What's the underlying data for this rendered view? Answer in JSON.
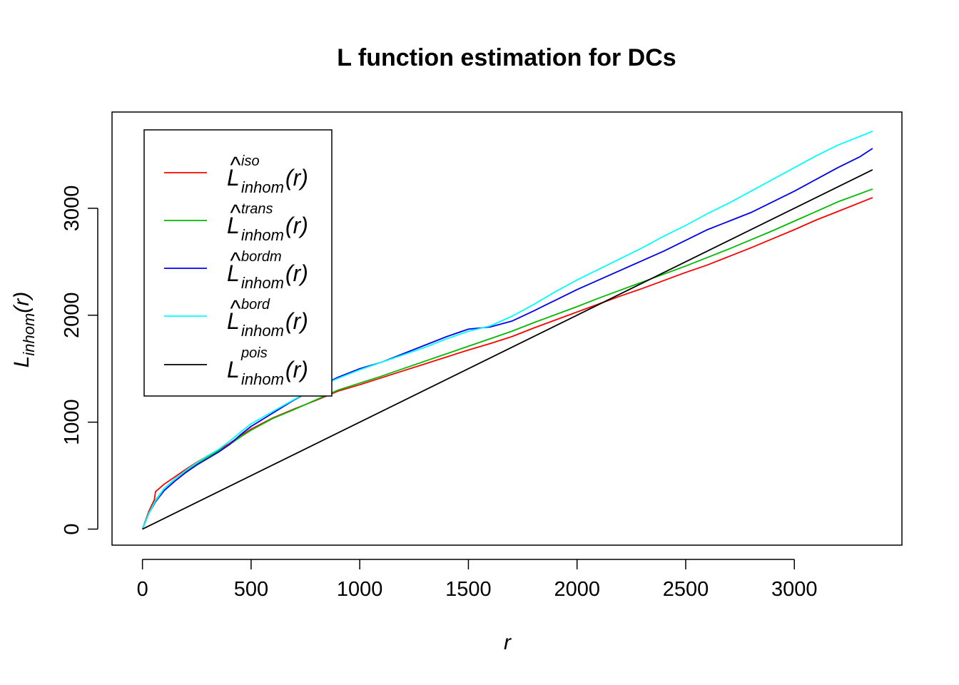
{
  "chart_data": {
    "type": "line",
    "title": "L function estimation for DCs",
    "xlabel": "r",
    "ylabel": {
      "base": "L",
      "subscript": "inhom",
      "paren": "(r)"
    },
    "xlim": [
      -140,
      3495
    ],
    "ylim": [
      -150,
      3900
    ],
    "xticks": [
      0,
      500,
      1000,
      1500,
      2000,
      2500,
      3000
    ],
    "yticks": [
      0,
      1000,
      2000,
      3000
    ],
    "xtick_labels": [
      "0",
      "500",
      "1000",
      "1500",
      "2000",
      "2500",
      "3000"
    ],
    "ytick_labels": [
      "0",
      "1000",
      "2000",
      "3000"
    ],
    "grid": false,
    "legend_position": "top-left",
    "series": [
      {
        "key": "iso",
        "legend": {
          "base": "L",
          "hat": true,
          "sup": "iso",
          "sub": "inhom",
          "paren": "(r)"
        },
        "color": "#FF0000",
        "points": [
          [
            0,
            0
          ],
          [
            30,
            170
          ],
          [
            55,
            275
          ],
          [
            60,
            350
          ],
          [
            100,
            420
          ],
          [
            150,
            490
          ],
          [
            200,
            560
          ],
          [
            250,
            625
          ],
          [
            300,
            685
          ],
          [
            350,
            740
          ],
          [
            400,
            800
          ],
          [
            450,
            870
          ],
          [
            500,
            935
          ],
          [
            600,
            1040
          ],
          [
            700,
            1125
          ],
          [
            800,
            1205
          ],
          [
            900,
            1290
          ],
          [
            1000,
            1350
          ],
          [
            1100,
            1415
          ],
          [
            1200,
            1480
          ],
          [
            1300,
            1545
          ],
          [
            1400,
            1610
          ],
          [
            1500,
            1675
          ],
          [
            1600,
            1735
          ],
          [
            1700,
            1800
          ],
          [
            1800,
            1880
          ],
          [
            1900,
            1955
          ],
          [
            2000,
            2030
          ],
          [
            2100,
            2105
          ],
          [
            2200,
            2180
          ],
          [
            2300,
            2250
          ],
          [
            2400,
            2325
          ],
          [
            2500,
            2400
          ],
          [
            2600,
            2470
          ],
          [
            2700,
            2550
          ],
          [
            2800,
            2630
          ],
          [
            2900,
            2715
          ],
          [
            3000,
            2800
          ],
          [
            3100,
            2890
          ],
          [
            3200,
            2970
          ],
          [
            3360,
            3100
          ]
        ]
      },
      {
        "key": "trans",
        "legend": {
          "base": "L",
          "hat": true,
          "sup": "trans",
          "sub": "inhom",
          "paren": "(r)"
        },
        "color": "#00BB00",
        "points": [
          [
            0,
            0
          ],
          [
            30,
            150
          ],
          [
            60,
            270
          ],
          [
            100,
            380
          ],
          [
            150,
            470
          ],
          [
            200,
            545
          ],
          [
            250,
            610
          ],
          [
            300,
            675
          ],
          [
            350,
            730
          ],
          [
            400,
            790
          ],
          [
            450,
            860
          ],
          [
            500,
            925
          ],
          [
            600,
            1035
          ],
          [
            700,
            1120
          ],
          [
            800,
            1210
          ],
          [
            900,
            1300
          ],
          [
            1000,
            1365
          ],
          [
            1100,
            1430
          ],
          [
            1200,
            1500
          ],
          [
            1300,
            1570
          ],
          [
            1400,
            1640
          ],
          [
            1500,
            1710
          ],
          [
            1600,
            1780
          ],
          [
            1700,
            1850
          ],
          [
            1800,
            1930
          ],
          [
            1900,
            2005
          ],
          [
            2000,
            2080
          ],
          [
            2100,
            2160
          ],
          [
            2200,
            2235
          ],
          [
            2300,
            2310
          ],
          [
            2400,
            2385
          ],
          [
            2500,
            2460
          ],
          [
            2600,
            2540
          ],
          [
            2700,
            2620
          ],
          [
            2800,
            2705
          ],
          [
            2900,
            2790
          ],
          [
            3000,
            2880
          ],
          [
            3100,
            2970
          ],
          [
            3200,
            3060
          ],
          [
            3360,
            3180
          ]
        ]
      },
      {
        "key": "bordm",
        "legend": {
          "base": "L",
          "hat": true,
          "sup": "bordm",
          "sub": "inhom",
          "paren": "(r)"
        },
        "color": "#0000EE",
        "points": [
          [
            0,
            0
          ],
          [
            30,
            150
          ],
          [
            60,
            255
          ],
          [
            100,
            360
          ],
          [
            150,
            450
          ],
          [
            200,
            530
          ],
          [
            250,
            600
          ],
          [
            300,
            660
          ],
          [
            350,
            720
          ],
          [
            400,
            790
          ],
          [
            450,
            880
          ],
          [
            500,
            960
          ],
          [
            600,
            1085
          ],
          [
            700,
            1210
          ],
          [
            800,
            1320
          ],
          [
            900,
            1420
          ],
          [
            1000,
            1500
          ],
          [
            1100,
            1560
          ],
          [
            1200,
            1640
          ],
          [
            1300,
            1720
          ],
          [
            1400,
            1800
          ],
          [
            1500,
            1870
          ],
          [
            1550,
            1880
          ],
          [
            1600,
            1890
          ],
          [
            1700,
            1945
          ],
          [
            1800,
            2040
          ],
          [
            1900,
            2140
          ],
          [
            2000,
            2240
          ],
          [
            2100,
            2330
          ],
          [
            2200,
            2420
          ],
          [
            2300,
            2510
          ],
          [
            2400,
            2600
          ],
          [
            2500,
            2700
          ],
          [
            2600,
            2800
          ],
          [
            2700,
            2880
          ],
          [
            2800,
            2960
          ],
          [
            2900,
            3060
          ],
          [
            3000,
            3160
          ],
          [
            3100,
            3270
          ],
          [
            3200,
            3380
          ],
          [
            3300,
            3480
          ],
          [
            3360,
            3560
          ]
        ]
      },
      {
        "key": "bord",
        "legend": {
          "base": "L",
          "hat": true,
          "sup": "bord",
          "sub": "inhom",
          "paren": "(r)"
        },
        "color": "#00FFFF",
        "points": [
          [
            0,
            0
          ],
          [
            30,
            150
          ],
          [
            60,
            265
          ],
          [
            100,
            380
          ],
          [
            150,
            470
          ],
          [
            200,
            550
          ],
          [
            250,
            620
          ],
          [
            300,
            685
          ],
          [
            350,
            745
          ],
          [
            400,
            820
          ],
          [
            450,
            905
          ],
          [
            500,
            985
          ],
          [
            600,
            1100
          ],
          [
            700,
            1215
          ],
          [
            800,
            1320
          ],
          [
            900,
            1410
          ],
          [
            1000,
            1490
          ],
          [
            1100,
            1560
          ],
          [
            1200,
            1630
          ],
          [
            1300,
            1700
          ],
          [
            1400,
            1780
          ],
          [
            1500,
            1850
          ],
          [
            1600,
            1900
          ],
          [
            1700,
            1990
          ],
          [
            1800,
            2100
          ],
          [
            1900,
            2220
          ],
          [
            2000,
            2330
          ],
          [
            2100,
            2430
          ],
          [
            2200,
            2530
          ],
          [
            2300,
            2630
          ],
          [
            2400,
            2740
          ],
          [
            2500,
            2840
          ],
          [
            2600,
            2950
          ],
          [
            2700,
            3050
          ],
          [
            2800,
            3160
          ],
          [
            2900,
            3270
          ],
          [
            3000,
            3380
          ],
          [
            3100,
            3490
          ],
          [
            3200,
            3590
          ],
          [
            3360,
            3720
          ]
        ]
      },
      {
        "key": "pois",
        "legend": {
          "base": "L",
          "hat": false,
          "sup": "pois",
          "sub": "inhom",
          "paren": "(r)"
        },
        "color": "#000000",
        "points": [
          [
            0,
            0
          ],
          [
            3360,
            3360
          ]
        ]
      }
    ]
  }
}
